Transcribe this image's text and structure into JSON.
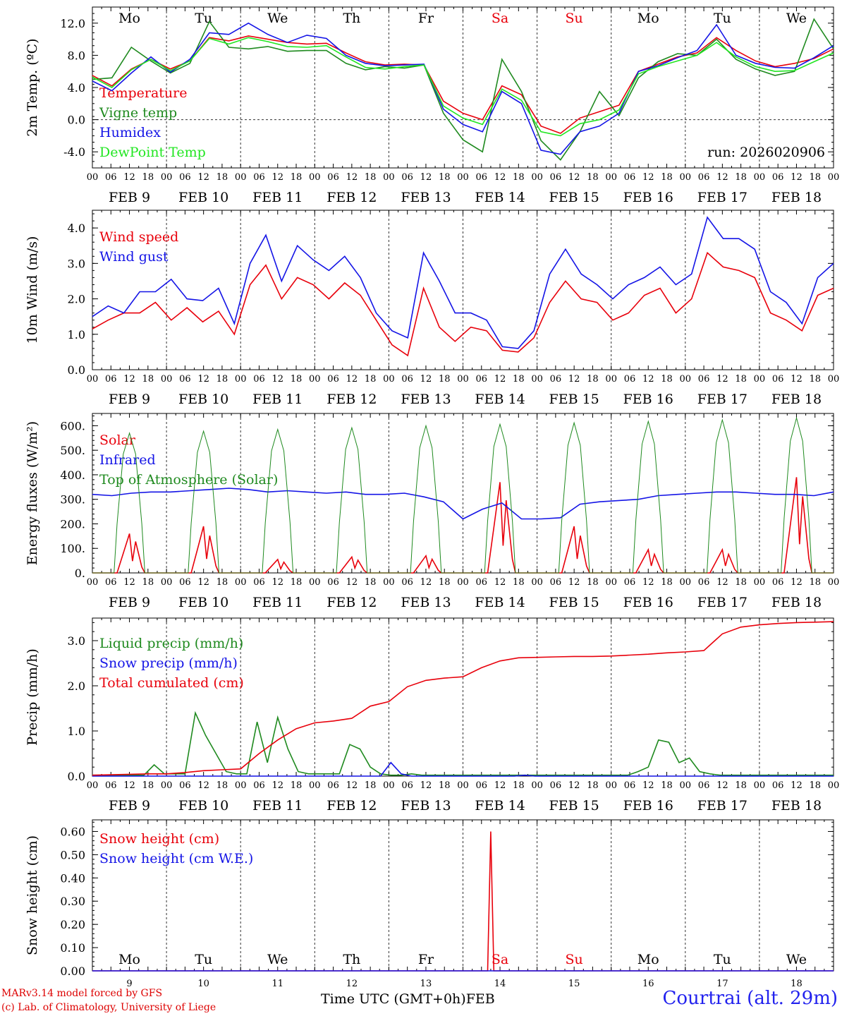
{
  "colors": {
    "red": "#e8000b",
    "green": "#1f8a1f",
    "blue": "#1414e6",
    "lime": "#22e622",
    "weekend": "#e8000b"
  },
  "time_axis": {
    "hour_ticks": [
      "00",
      "06",
      "12",
      "18"
    ],
    "dates": [
      "FEB  9",
      "FEB 10",
      "FEB 11",
      "FEB 12",
      "FEB 13",
      "FEB 14",
      "FEB 15",
      "FEB 16",
      "FEB 17",
      "FEB 18"
    ],
    "weekdays": [
      "Mo",
      "Tu",
      "We",
      "Th",
      "Fr",
      "Sa",
      "Su",
      "Mo",
      "Tu",
      "We"
    ],
    "weekend_flags": [
      false,
      false,
      false,
      false,
      false,
      true,
      true,
      false,
      false,
      false
    ],
    "day_numbers": [
      "9",
      "10",
      "11",
      "12",
      "13",
      "14",
      "15",
      "16",
      "17",
      "18"
    ],
    "xlabel": "Time UTC (GMT+0h)",
    "month": "FEB"
  },
  "chart_data": [
    {
      "type": "line",
      "id": "temperature",
      "ylabel": "2m Temp. (ºC)",
      "ylim": [
        -6.0,
        14.0
      ],
      "yticks": [
        "-4.0",
        "0.0",
        "4.0",
        "8.0",
        "12.0"
      ],
      "yticks_values": [
        -4,
        0,
        4,
        8,
        12
      ],
      "zero_line": true,
      "annotation": "run: 2026020906",
      "x_hours_step": 6,
      "series": [
        {
          "name": "Temperature",
          "color": "red",
          "values": [
            5.5,
            4.2,
            6.3,
            7.5,
            6.3,
            7.3,
            10.2,
            9.8,
            10.4,
            10.0,
            9.6,
            9.4,
            9.5,
            8.3,
            7.2,
            6.8,
            6.9,
            6.8,
            2.3,
            0.8,
            0.0,
            4.2,
            3.1,
            -0.8,
            -1.7,
            0.2,
            1.0,
            1.8,
            6.0,
            6.9,
            7.8,
            8.3,
            10.2,
            8.6,
            7.3,
            6.6,
            7.0,
            7.6,
            8.8
          ]
        },
        {
          "name": "Vigne temp",
          "color": "green",
          "values": [
            5.0,
            5.2,
            9.0,
            7.3,
            5.8,
            7.0,
            12.2,
            9.0,
            8.8,
            9.1,
            8.5,
            8.6,
            8.6,
            7.0,
            6.2,
            6.6,
            6.4,
            6.8,
            0.8,
            -2.5,
            -4.0,
            7.5,
            3.5,
            -2.6,
            -5.0,
            -1.5,
            3.5,
            0.5,
            5.2,
            7.2,
            8.2,
            8.0,
            10.0,
            7.5,
            6.3,
            5.5,
            6.0,
            12.5,
            8.8
          ]
        },
        {
          "name": "Humidex",
          "color": "blue",
          "values": [
            4.8,
            3.6,
            5.8,
            7.8,
            5.9,
            7.5,
            10.8,
            10.6,
            12.0,
            10.6,
            9.6,
            10.5,
            10.1,
            8.0,
            7.0,
            6.7,
            6.8,
            6.9,
            1.3,
            -0.6,
            -1.5,
            3.5,
            2.0,
            -3.8,
            -4.3,
            -1.5,
            -0.8,
            0.8,
            6.0,
            6.7,
            7.7,
            8.6,
            11.8,
            8.0,
            7.0,
            6.5,
            6.4,
            7.7,
            9.2
          ]
        },
        {
          "name": "DewPoint Temp",
          "color": "lime",
          "values": [
            5.3,
            4.0,
            6.2,
            7.5,
            6.1,
            7.3,
            10.1,
            9.4,
            10.2,
            9.7,
            9.1,
            9.0,
            9.2,
            7.8,
            6.5,
            6.3,
            6.6,
            6.8,
            1.7,
            0.2,
            -0.6,
            3.8,
            2.4,
            -1.5,
            -2.0,
            -0.5,
            0.0,
            1.2,
            5.7,
            6.6,
            7.3,
            8.0,
            9.6,
            7.8,
            6.6,
            6.0,
            6.1,
            7.2,
            8.3
          ]
        }
      ]
    },
    {
      "type": "line",
      "id": "wind",
      "ylabel": "10m Wind (m/s)",
      "ylim": [
        0.0,
        4.5
      ],
      "yticks": [
        "0.0",
        "1.0",
        "2.0",
        "3.0",
        "4.0"
      ],
      "yticks_values": [
        0,
        1,
        2,
        3,
        4
      ],
      "x_hours_step": 6,
      "series": [
        {
          "name": "Wind speed",
          "color": "red",
          "values": [
            1.15,
            1.4,
            1.6,
            1.6,
            1.9,
            1.4,
            1.75,
            1.35,
            1.65,
            1.0,
            2.4,
            2.95,
            2.0,
            2.6,
            2.4,
            2.0,
            2.45,
            2.1,
            1.4,
            0.7,
            0.4,
            2.3,
            1.2,
            0.8,
            1.2,
            1.1,
            0.55,
            0.5,
            0.9,
            1.9,
            2.5,
            2.0,
            1.9,
            1.4,
            1.6,
            2.1,
            2.3,
            1.6,
            2.0,
            3.3,
            2.9,
            2.8,
            2.6,
            1.6,
            1.4,
            1.1,
            2.1,
            2.3
          ]
        },
        {
          "name": "Wind gust",
          "color": "blue",
          "values": [
            1.5,
            1.8,
            1.6,
            2.2,
            2.2,
            2.55,
            2.0,
            1.95,
            2.3,
            1.3,
            3.0,
            3.8,
            2.5,
            3.5,
            3.1,
            2.8,
            3.2,
            2.6,
            1.6,
            1.1,
            0.9,
            3.3,
            2.5,
            1.6,
            1.6,
            1.4,
            0.65,
            0.6,
            1.1,
            2.7,
            3.4,
            2.7,
            2.4,
            2.0,
            2.4,
            2.6,
            2.9,
            2.4,
            2.7,
            4.3,
            3.7,
            3.7,
            3.4,
            2.2,
            1.9,
            1.3,
            2.6,
            3.0
          ]
        }
      ]
    },
    {
      "type": "line",
      "id": "energy",
      "ylabel": "Energy fluxes (W/m²)",
      "ylim": [
        0,
        650
      ],
      "yticks": [
        "0.",
        "100.",
        "200.",
        "300.",
        "400.",
        "500.",
        "600."
      ],
      "yticks_values": [
        0,
        100,
        200,
        300,
        400,
        500,
        600
      ],
      "x_hours_step": 6,
      "series": [
        {
          "name": "Solar",
          "color": "red",
          "peaks": [
            160,
            190,
            55,
            65,
            70,
            370,
            190,
            95,
            95,
            390
          ]
        },
        {
          "name": "Infrared",
          "color": "blue",
          "values": [
            320,
            315,
            325,
            330,
            330,
            335,
            340,
            345,
            340,
            330,
            335,
            330,
            325,
            330,
            320,
            320,
            325,
            310,
            290,
            220,
            260,
            285,
            220,
            220,
            225,
            280,
            290,
            295,
            300,
            315,
            320,
            325,
            330,
            330,
            325,
            320,
            320,
            315,
            330
          ]
        },
        {
          "name": "Top of Atmosphere (Solar)",
          "color": "green",
          "peaks": [
            570,
            578,
            585,
            592,
            600,
            606,
            612,
            618,
            624,
            632
          ]
        }
      ]
    },
    {
      "type": "line",
      "id": "precip",
      "ylabel": "Precip (mm/h)",
      "ylim": [
        0.0,
        3.5
      ],
      "yticks": [
        "0.0",
        "1.0",
        "2.0",
        "3.0"
      ],
      "yticks_values": [
        0,
        1,
        2,
        3
      ],
      "x_hours_step": 6,
      "series": [
        {
          "name": "Liquid precip (mm/h)",
          "color": "green",
          "values": [
            0.02,
            0.02,
            0.02,
            0.02,
            0.02,
            0.02,
            0.25,
            0.05,
            0.05,
            0.05,
            1.4,
            0.9,
            0.5,
            0.1,
            0.05,
            0.05,
            1.2,
            0.3,
            1.3,
            0.6,
            0.1,
            0.05,
            0.05,
            0.05,
            0.05,
            0.7,
            0.6,
            0.2,
            0.05,
            0.02,
            0.02,
            0.05,
            0.02,
            0.02,
            0.02,
            0.02,
            0.02,
            0.02,
            0.02,
            0.02,
            0.02,
            0.02,
            0.02,
            0.02,
            0.02,
            0.02,
            0.02,
            0.02,
            0.02,
            0.02,
            0.02,
            0.02,
            0.02,
            0.1,
            0.2,
            0.8,
            0.75,
            0.3,
            0.4,
            0.1,
            0.05,
            0.02,
            0.02,
            0.02,
            0.02,
            0.02,
            0.02,
            0.02,
            0.02,
            0.02,
            0.02,
            0.02,
            0.02
          ]
        },
        {
          "name": "Snow precip (mm/h)",
          "color": "blue",
          "values": [
            0,
            0,
            0,
            0,
            0,
            0,
            0,
            0,
            0,
            0,
            0,
            0,
            0,
            0,
            0,
            0,
            0,
            0,
            0,
            0,
            0,
            0,
            0,
            0,
            0,
            0,
            0,
            0,
            0,
            0.3,
            0.05,
            0,
            0,
            0,
            0,
            0,
            0,
            0,
            0,
            0,
            0,
            0,
            0.02,
            0,
            0,
            0,
            0,
            0,
            0,
            0,
            0,
            0,
            0,
            0,
            0,
            0,
            0,
            0,
            0,
            0,
            0,
            0,
            0,
            0,
            0,
            0,
            0,
            0,
            0,
            0,
            0,
            0,
            0
          ]
        },
        {
          "name": "Total cumulated (cm)",
          "color": "red",
          "values": [
            0.02,
            0.03,
            0.04,
            0.05,
            0.05,
            0.08,
            0.12,
            0.14,
            0.16,
            0.5,
            0.8,
            1.05,
            1.18,
            1.22,
            1.28,
            1.55,
            1.65,
            1.98,
            2.12,
            2.17,
            2.2,
            2.4,
            2.55,
            2.62,
            2.63,
            2.64,
            2.65,
            2.65,
            2.66,
            2.68,
            2.7,
            2.73,
            2.75,
            2.78,
            3.15,
            3.3,
            3.35,
            3.38,
            3.4,
            3.41,
            3.42
          ]
        }
      ]
    },
    {
      "type": "line",
      "id": "snow",
      "ylabel": "Snow height (cm)",
      "ylim": [
        0.0,
        0.65
      ],
      "yticks": [
        "0.00",
        "0.10",
        "0.20",
        "0.30",
        "0.40",
        "0.50",
        "0.60"
      ],
      "yticks_values": [
        0,
        0.1,
        0.2,
        0.3,
        0.4,
        0.5,
        0.6
      ],
      "x_hours_step": 6,
      "series": [
        {
          "name": "Snow height (cm)",
          "color": "red",
          "spike_hour": 129,
          "spike_value": 0.6
        },
        {
          "name": "Snow height (cm W.E.)",
          "color": "blue",
          "values": [
            0
          ]
        }
      ]
    }
  ],
  "footer": {
    "model": "MARv3.14 model forced by GFS",
    "copyright": "(c) Lab. of Climatology, University of Liege",
    "station": "Courtrai (alt. 29m)"
  }
}
